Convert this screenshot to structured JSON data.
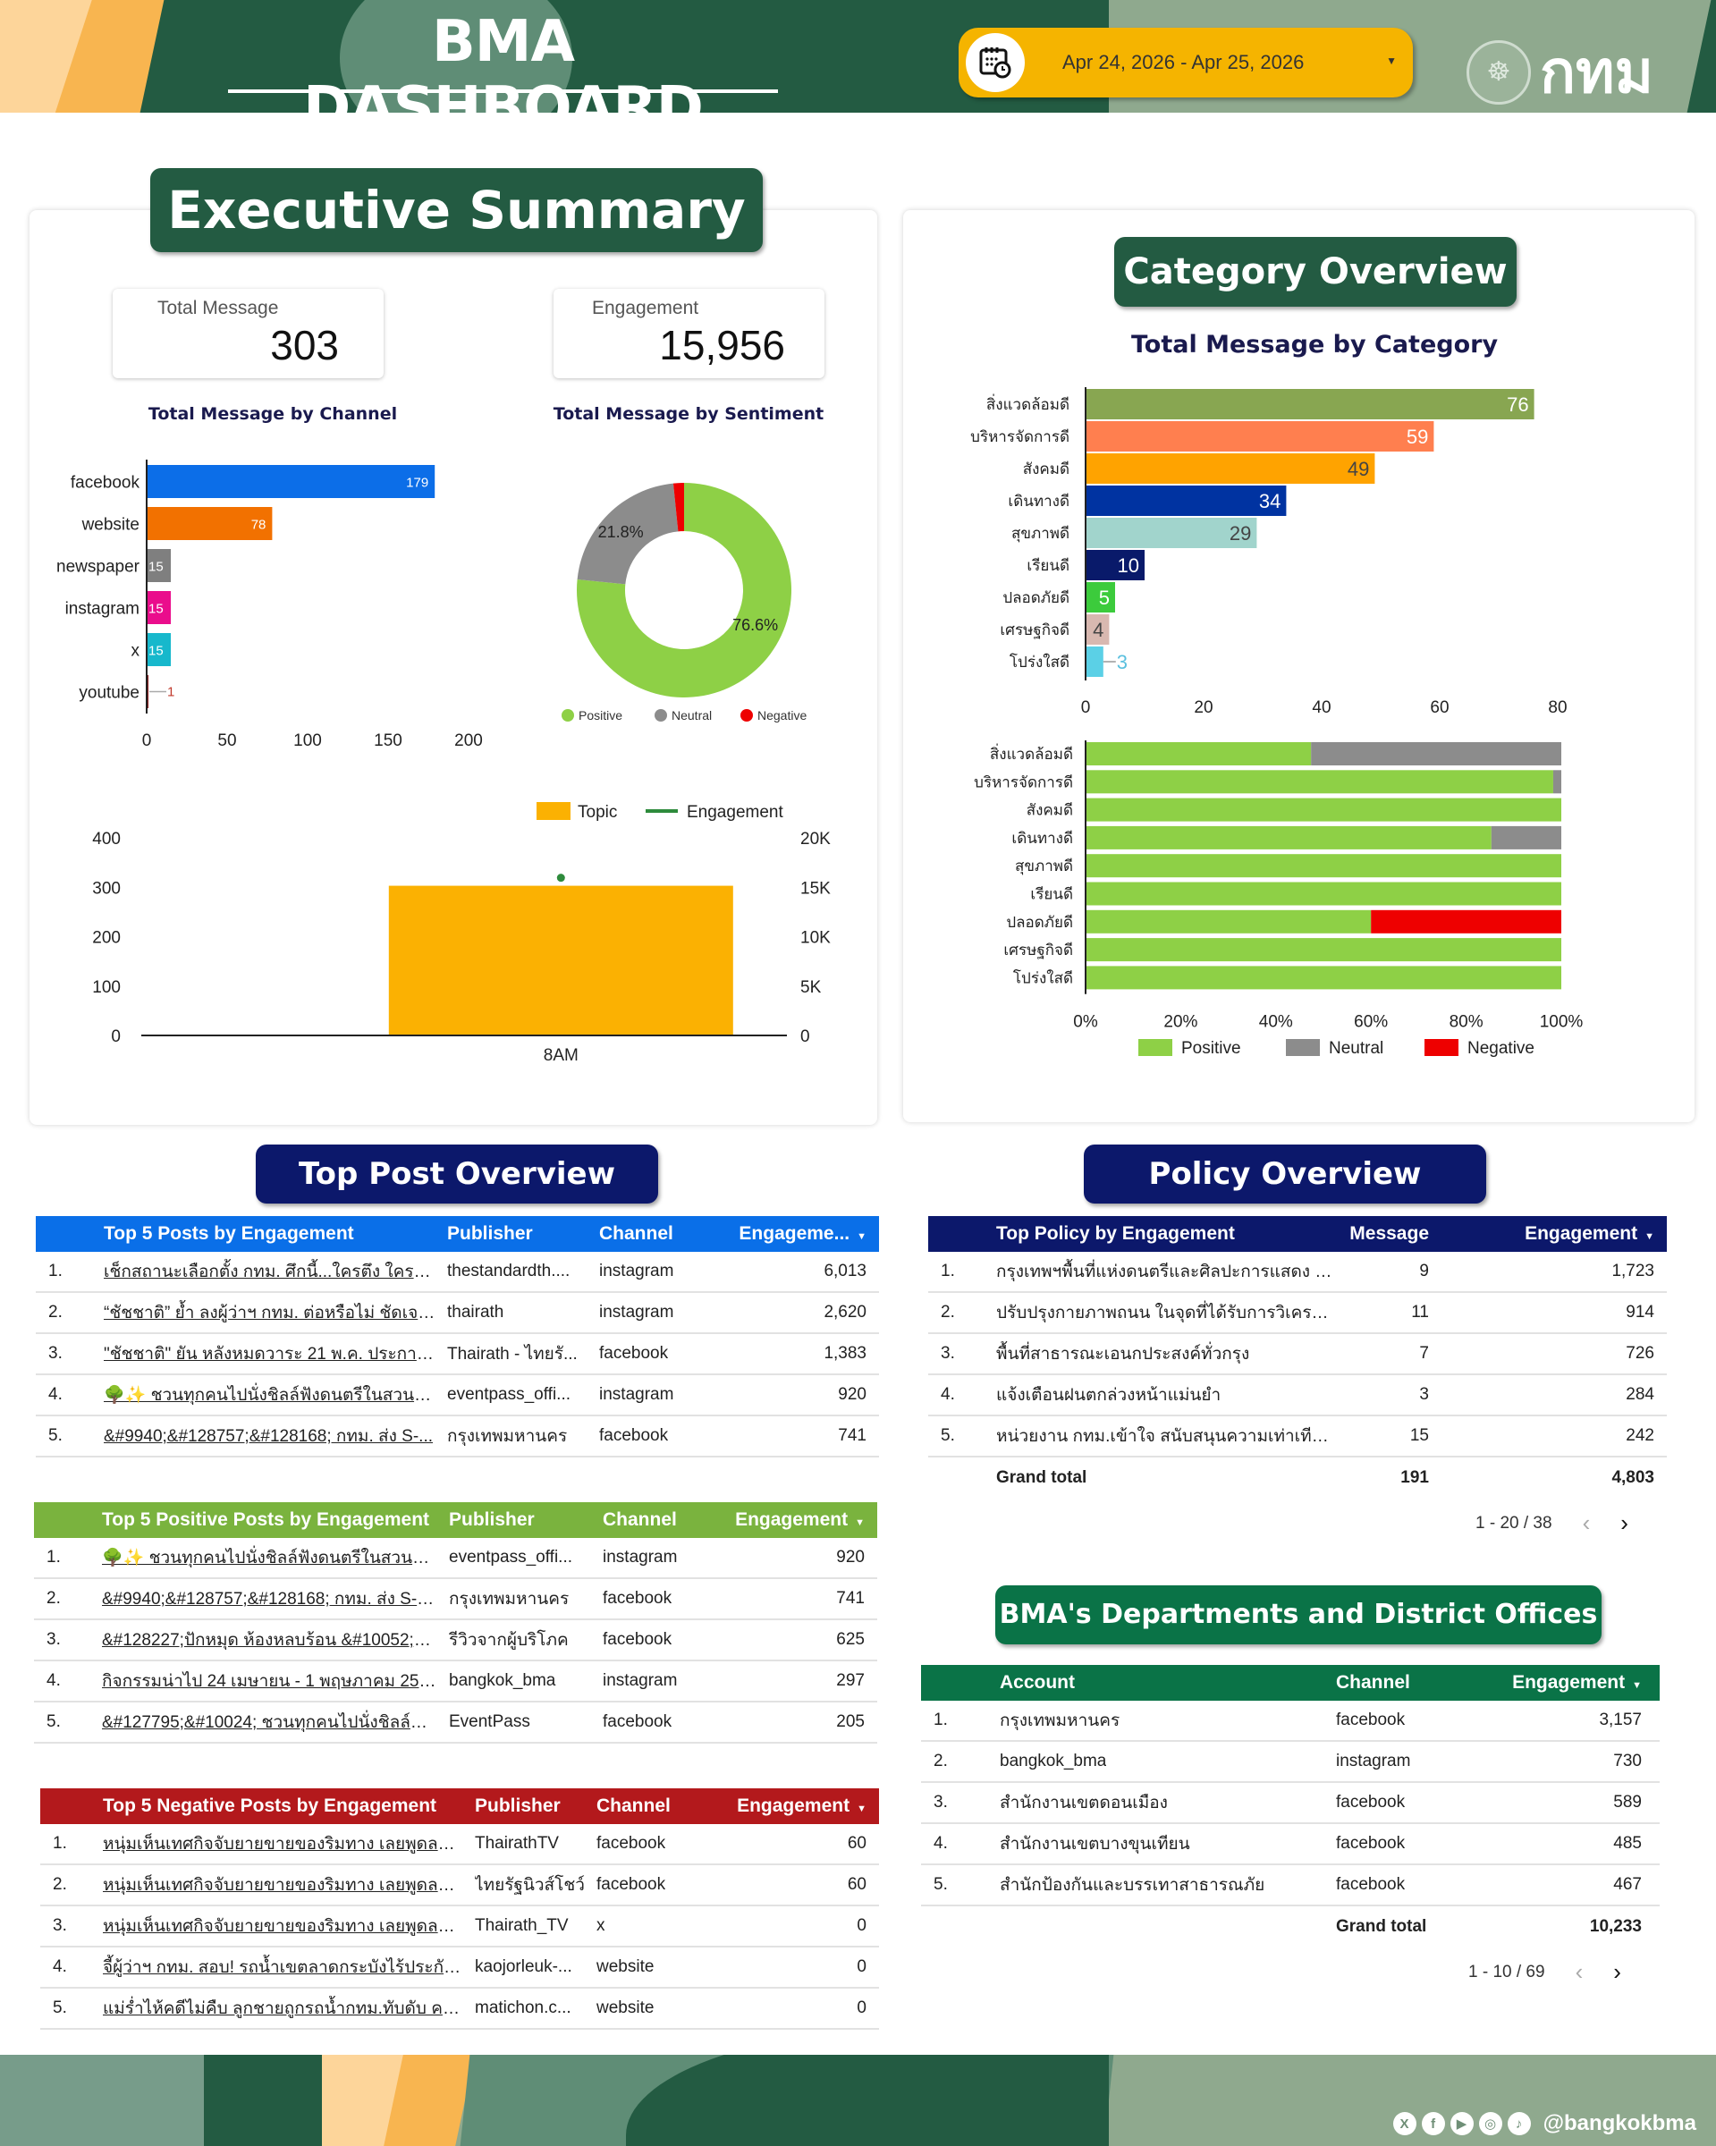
{
  "header": {
    "title": "BMA DASHBOARD",
    "date_range": "Apr 24, 2026 - Apr 25, 2026",
    "logo_text": "กทม"
  },
  "executive_summary": {
    "title": "Executive Summary",
    "kpis": [
      {
        "label": "Total Message",
        "value": "303"
      },
      {
        "label": "Engagement",
        "value": "15,956"
      }
    ]
  },
  "category_overview": {
    "title": "Category Overview"
  },
  "chart_data": [
    {
      "id": "channel",
      "type": "bar",
      "orientation": "horizontal",
      "title": "Total Message by Channel",
      "categories": [
        "facebook",
        "website",
        "newspaper",
        "instagram",
        "x",
        "youtube"
      ],
      "values": [
        179,
        78,
        15,
        15,
        15,
        1
      ],
      "colors": [
        "#0c6ee8",
        "#f27100",
        "#7f7f7f",
        "#ea0d8c",
        "#17b8cc",
        "#8b1a1a"
      ],
      "xlim": [
        0,
        200
      ],
      "xticks": [
        "0",
        "50",
        "100",
        "150",
        "200"
      ]
    },
    {
      "id": "sentiment",
      "type": "pie",
      "donut": true,
      "title": "Total Message by Sentiment",
      "categories": [
        "Positive",
        "Neutral",
        "Negative"
      ],
      "values": [
        76.6,
        21.8,
        1.6
      ],
      "labels": [
        "76.6%",
        "21.8%",
        ""
      ],
      "colors": [
        "#8ed046",
        "#8c8c8c",
        "#ee0000"
      ],
      "legend": "bottom"
    },
    {
      "id": "hourly",
      "type": "bar",
      "combo": true,
      "categories": [
        "8AM"
      ],
      "series": [
        {
          "name": "Topic",
          "type": "bar",
          "values": [
            303
          ],
          "axis": "left",
          "color": "#fbb102"
        },
        {
          "name": "Engagement",
          "type": "line",
          "values": [
            15956
          ],
          "axis": "right",
          "color": "#2e8b3c"
        }
      ],
      "ylim_left": [
        0,
        400
      ],
      "yticks_left": [
        "0",
        "100",
        "200",
        "300",
        "400"
      ],
      "ylim_right": [
        0,
        20000
      ],
      "yticks_right": [
        "0",
        "5K",
        "10K",
        "15K",
        "20K"
      ],
      "legend": "top-right"
    },
    {
      "id": "category",
      "type": "bar",
      "orientation": "horizontal",
      "title": "Total Message by Category",
      "categories": [
        "สิ่งแวดล้อมดี",
        "บริหารจัดการดี",
        "สังคมดี",
        "เดินทางดี",
        "สุขภาพดี",
        "เรียนดี",
        "ปลอดภัยดี",
        "เศรษฐกิจดี",
        "โปร่งใสดี"
      ],
      "values": [
        76,
        59,
        49,
        34,
        29,
        10,
        5,
        4,
        3
      ],
      "colors": [
        "#88a651",
        "#ff7f4f",
        "#ffa300",
        "#0033a1",
        "#a1d4cc",
        "#091a6a",
        "#3ccb3c",
        "#d8b8b0",
        "#5bd0e6"
      ],
      "label_colors": [
        "#ffffff",
        "#ffffff",
        "#444444",
        "#ffffff",
        "#444444",
        "#ffffff",
        "#ffffff",
        "#444444",
        "#5bc0de"
      ],
      "xlim": [
        0,
        80
      ],
      "xticks": [
        "0",
        "20",
        "40",
        "60",
        "80"
      ]
    },
    {
      "id": "category_sentiment",
      "type": "bar",
      "stacked": "percent",
      "orientation": "horizontal",
      "categories": [
        "สิ่งแวดล้อมดี",
        "บริหารจัดการดี",
        "สังคมดี",
        "เดินทางดี",
        "สุขภาพดี",
        "เรียนดี",
        "ปลอดภัยดี",
        "เศรษฐกิจดี",
        "โปร่งใสดี"
      ],
      "series": [
        {
          "name": "Positive",
          "color": "#8ed046",
          "values": [
            47.4,
            98.3,
            100,
            85.3,
            100,
            100,
            60,
            100,
            100
          ]
        },
        {
          "name": "Neutral",
          "color": "#8c8c8c",
          "values": [
            52.6,
            1.7,
            0,
            14.7,
            0,
            0,
            0,
            0,
            0
          ]
        },
        {
          "name": "Negative",
          "color": "#ee0000",
          "values": [
            0,
            0,
            0,
            0,
            0,
            0,
            40,
            0,
            0
          ]
        }
      ],
      "xlim": [
        0,
        100
      ],
      "xticks": [
        "0%",
        "20%",
        "40%",
        "60%",
        "80%",
        "100%"
      ],
      "legend": "bottom"
    }
  ],
  "top_post": {
    "title": "Top Post Overview",
    "tables": [
      {
        "header_color": "#0a6fe8",
        "columns": [
          "Top 5 Posts by Engagement",
          "Publisher",
          "Channel",
          "Engageme..."
        ],
        "rows": [
          {
            "n": "1.",
            "post": "เช็กสถานะเลือกตั้ง กทม. ศึกนี้...ใครตึง ใครเท นับถ...",
            "publisher": "thestandardth....",
            "channel": "instagram",
            "engagement": "6,013"
          },
          {
            "n": "2.",
            "post": "“ชัชชาติ” ย้ำ ลงผู้ว่าฯ กทม. ต่อหรือไม่ ชัดเจนหลัง 2...",
            "publisher": "thairath",
            "channel": "instagram",
            "engagement": "2,620"
          },
          {
            "n": "3.",
            "post": "\"ชัชชาติ\" ยัน หลังหมดวาระ 21 พ.ค. ประกาศแน่ลง...",
            "publisher": "Thairath - ไทยรั...",
            "channel": "facebook",
            "engagement": "1,383"
          },
          {
            "n": "4.",
            "post": "🌳✨ ชวนทุกคนไปนั่งชิลล์ฟังดนตรีในสวนกลางก...",
            "publisher": "eventpass_offi...",
            "channel": "instagram",
            "engagement": "920"
          },
          {
            "n": "5.",
            "post": "&#9940;&#128757;&#128168; กทม. ส่ง S-...",
            "publisher": "กรุงเทพมหานคร",
            "channel": "facebook",
            "engagement": "741"
          }
        ]
      },
      {
        "header_color": "#7ab33e",
        "columns": [
          "Top 5 Positive Posts by Engagement",
          "Publisher",
          "Channel",
          "Engagement"
        ],
        "rows": [
          {
            "n": "1.",
            "post": "🌳✨ ชวนทุกคนไปนั่งชิลล์ฟังดนตรีในสวนกลางกรุ...",
            "publisher": "eventpass_offi...",
            "channel": "instagram",
            "engagement": "920"
          },
          {
            "n": "2.",
            "post": "&#9940;&#128757;&#128168; กทม. ส่ง S-G...",
            "publisher": "กรุงเทพมหานคร",
            "channel": "facebook",
            "engagement": "741"
          },
          {
            "n": "3.",
            "post": "&#128227;ปักหมุด ห้องหลบร้อน &#10052;ทั่ว ...",
            "publisher": "รีวิวจากผู้บริโภค",
            "channel": "facebook",
            "engagement": "625"
          },
          {
            "n": "4.",
            "post": "กิจกรรมน่าไป 24 เมษายน - 1 พฤษภาคม 2569 ชว...",
            "publisher": "bangkok_bma",
            "channel": "instagram",
            "engagement": "297"
          },
          {
            "n": "5.",
            "post": "&#127795;&#10024; ชวนทุกคนไปนั่งชิลล์ฟังด...",
            "publisher": "EventPass",
            "channel": "facebook",
            "engagement": "205"
          }
        ]
      },
      {
        "header_color": "#b3191c",
        "columns": [
          "Top 5 Negative Posts by Engagement",
          "Publisher",
          "Channel",
          "Engagement"
        ],
        "rows": [
          {
            "n": "1.",
            "post": "หนุ่มเห็นเทศกิจจับยายขายของริมทาง เลยพูดลอยๆกับเข...",
            "publisher": "ThairathTV",
            "channel": "facebook",
            "engagement": "60"
          },
          {
            "n": "2.",
            "post": "หนุ่มเห็นเทศกิจจับยายขายของริมทาง เลยพูดลอยๆ \"กับเ...",
            "publisher": "ไทยรัฐนิวส์โชว์",
            "channel": "facebook",
            "engagement": "60"
          },
          {
            "n": "3.",
            "post": "หนุ่มเห็นเทศกิจจับยายขายของริมทาง เลยพูดลอยๆกับเข...",
            "publisher": "Thairath_TV",
            "channel": "x",
            "engagement": "0"
          },
          {
            "n": "4.",
            "post": "จี้ผู้ว่าฯ กทม. สอบ! รถน้ำเขตลาดกระบังไร้ประกันพุ่งชนเ...",
            "publisher": "kaojorleuk-...",
            "channel": "website",
            "engagement": "0"
          },
          {
            "n": "5.",
            "post": "แม่ร่ำไห้คดีไม่คืบ ลูกชายถูกรถน้ำกทม.ทับดับ คนขับขอฯ...",
            "publisher": "matichon.c...",
            "channel": "website",
            "engagement": "0"
          }
        ]
      }
    ]
  },
  "policy": {
    "title": "Policy Overview",
    "header_color": "#0c186b",
    "columns": [
      "Top Policy by Engagement",
      "Message",
      "Engagement"
    ],
    "rows": [
      {
        "n": "1.",
        "policy": "กรุงเทพฯพื้นที่แห่งดนตรีและศิลปะการแสดง (สต...",
        "message": "9",
        "engagement": "1,723"
      },
      {
        "n": "2.",
        "policy": "ปรับปรุงกายภาพถนน ในจุดที่ได้รับการวิเคราะห์...",
        "message": "11",
        "engagement": "914"
      },
      {
        "n": "3.",
        "policy": "พื้นที่สาธารณะเอนกประสงค์ทั่วกรุง",
        "message": "7",
        "engagement": "726"
      },
      {
        "n": "4.",
        "policy": "แจ้งเตือนฝนตกล่วงหน้าแม่นยำ",
        "message": "3",
        "engagement": "284"
      },
      {
        "n": "5.",
        "policy": "หน่วยงาน กทม.เข้าใจ สนับสนุนความเท่าเทียม ...",
        "message": "15",
        "engagement": "242"
      }
    ],
    "grand_total_label": "Grand total",
    "grand_total_message": "191",
    "grand_total_engagement": "4,803",
    "pagination": "1 - 20 / 38"
  },
  "departments": {
    "title": "BMA's Departments and District Offices",
    "header_color": "#0a7347",
    "columns": [
      "Account",
      "Channel",
      "Engagement"
    ],
    "rows": [
      {
        "n": "1.",
        "account": "กรุงเทพมหานคร",
        "channel": "facebook",
        "engagement": "3,157"
      },
      {
        "n": "2.",
        "account": "bangkok_bma",
        "channel": "instagram",
        "engagement": "730"
      },
      {
        "n": "3.",
        "account": "สำนักงานเขตดอนเมือง",
        "channel": "facebook",
        "engagement": "589"
      },
      {
        "n": "4.",
        "account": "สำนักงานเขตบางขุนเทียน",
        "channel": "facebook",
        "engagement": "485"
      },
      {
        "n": "5.",
        "account": "สำนักป้องกันและบรรเทาสาธารณภัย",
        "channel": "facebook",
        "engagement": "467"
      }
    ],
    "grand_total_label": "Grand total",
    "grand_total_engagement": "10,233",
    "pagination": "1 - 10 / 69"
  },
  "footer": {
    "social_icons": [
      "x-icon",
      "facebook-icon",
      "youtube-icon",
      "instagram-icon",
      "tiktok-icon"
    ],
    "social_glyphs": [
      "X",
      "f",
      "▶",
      "◎",
      "♪"
    ],
    "handle": "@bangkokbma"
  }
}
